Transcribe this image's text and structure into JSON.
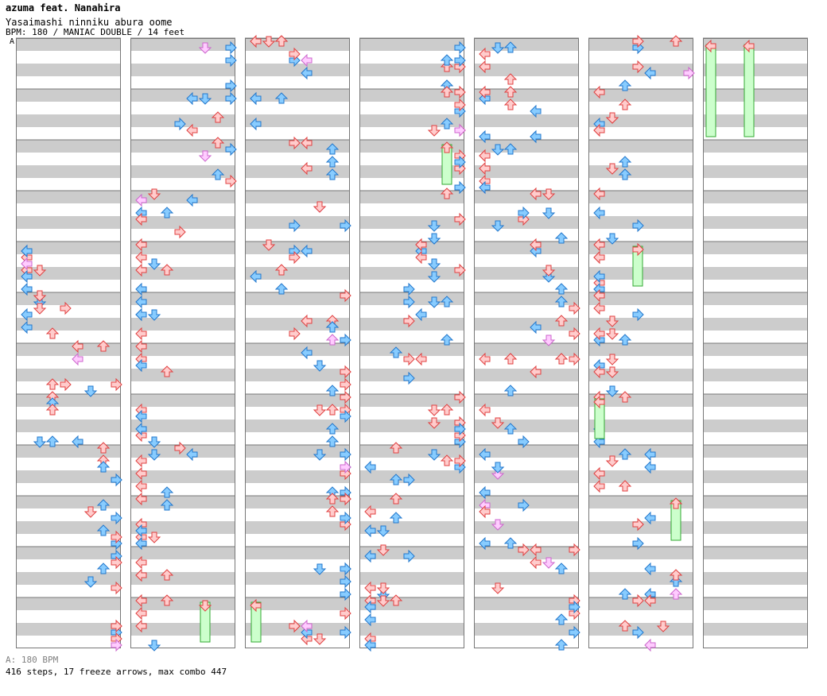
{
  "header": {
    "artist": "azuma feat. Nanahira",
    "title": "Yasaimashi ninniku abura oome",
    "info": "BPM: 180 / MANIAC DOUBLE / 14 feet"
  },
  "chart_data": {
    "type": "step-chart",
    "style": "double",
    "bpm_marker": "A",
    "measures_per_column": 12,
    "columns": 7,
    "total_measures": 78,
    "colors": {
      "stripe": "#cccccc",
      "border": "#777777",
      "quarter_note": "#ffcccc",
      "quarter_edge": "#e04040",
      "eighth_note": "#88ccff",
      "eighth_edge": "#2277cc",
      "sixteenth_note": "#ffccff",
      "sixteenth_edge": "#cc66cc",
      "other_note": "#55ee55",
      "other_edge": "#119911",
      "freeze_body": "#ccffcc",
      "freeze_edge": "#33aa33"
    }
  },
  "footer": {
    "bpm_note": "A: 180 BPM",
    "stats": "416 steps, 17 freeze arrows, max combo 447"
  }
}
